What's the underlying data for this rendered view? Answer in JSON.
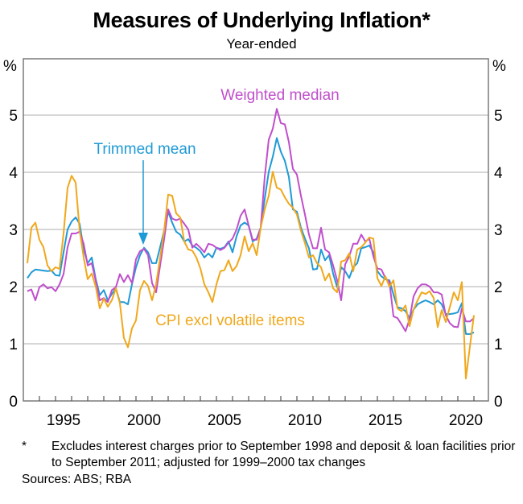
{
  "chart_data": {
    "type": "line",
    "title": "Measures of Underlying Inflation*",
    "subtitle": "Year-ended",
    "ylabel_left": "%",
    "ylabel_right": "%",
    "xlabel": "",
    "xlim": [
      1993.0,
      2021.9
    ],
    "ylim": [
      0,
      5.5
    ],
    "yticks": [
      0,
      1,
      2,
      3,
      4,
      5
    ],
    "xtick_labels": [
      "1995",
      "2000",
      "2005",
      "2010",
      "2015",
      "2020"
    ],
    "xtick_label_years": [
      1995,
      2000,
      2005,
      2010,
      2015,
      2020
    ],
    "minor_tick_years": [
      1994,
      1995,
      1996,
      1997,
      1998,
      1999,
      2000,
      2001,
      2002,
      2003,
      2004,
      2005,
      2006,
      2007,
      2008,
      2009,
      2010,
      2011,
      2012,
      2013,
      2014,
      2015,
      2016,
      2017,
      2018,
      2019,
      2020,
      2021
    ],
    "grid": true,
    "frequency": "quarterly",
    "x_start": 1993.25,
    "x_step": 0.25,
    "series": [
      {
        "name": "Trimmed mean",
        "color": "#1f9ad6",
        "values": [
          2.15,
          2.25,
          2.3,
          2.29,
          2.28,
          2.27,
          2.28,
          2.2,
          2.19,
          2.6,
          3.0,
          3.14,
          3.21,
          3.1,
          2.65,
          2.41,
          2.51,
          2.13,
          1.85,
          1.94,
          1.76,
          1.87,
          1.97,
          1.73,
          1.73,
          1.69,
          2.04,
          2.34,
          2.55,
          2.68,
          2.6,
          2.41,
          2.41,
          2.69,
          2.98,
          3.31,
          3.12,
          2.96,
          2.91,
          2.79,
          2.83,
          2.72,
          2.68,
          2.62,
          2.51,
          2.58,
          2.51,
          2.68,
          2.66,
          2.69,
          2.79,
          2.6,
          2.88,
          3.07,
          3.12,
          3.07,
          2.79,
          2.84,
          3.03,
          3.54,
          4.01,
          4.27,
          4.6,
          4.36,
          4.2,
          3.92,
          3.35,
          3.31,
          3.03,
          2.84,
          2.67,
          2.3,
          2.31,
          2.65,
          2.46,
          2.55,
          2.23,
          1.99,
          2.34,
          2.27,
          2.15,
          2.34,
          2.41,
          2.67,
          2.69,
          2.72,
          2.6,
          2.27,
          2.18,
          2.13,
          2.11,
          1.86,
          1.64,
          1.62,
          1.57,
          1.45,
          1.6,
          1.69,
          1.73,
          1.76,
          1.73,
          1.69,
          1.76,
          1.69,
          1.52,
          1.52,
          1.53,
          1.55,
          1.71,
          1.17,
          1.17,
          1.2
        ]
      },
      {
        "name": "Weighted median",
        "color": "#c04fcc",
        "values": [
          1.92,
          1.95,
          1.76,
          1.99,
          2.04,
          1.97,
          1.99,
          1.92,
          2.04,
          2.22,
          2.69,
          2.93,
          2.93,
          2.96,
          2.75,
          2.37,
          2.41,
          2.1,
          1.76,
          1.8,
          1.73,
          1.94,
          1.99,
          2.22,
          2.08,
          2.2,
          2.06,
          2.48,
          2.62,
          2.66,
          2.55,
          2.06,
          1.9,
          2.37,
          2.83,
          3.35,
          3.19,
          3.16,
          3.19,
          3.1,
          3.0,
          2.68,
          2.75,
          2.68,
          2.6,
          2.75,
          2.73,
          2.68,
          2.64,
          2.68,
          2.77,
          2.84,
          3.0,
          3.24,
          3.35,
          3.07,
          2.82,
          2.82,
          3.03,
          3.92,
          4.57,
          4.76,
          5.11,
          4.86,
          4.84,
          4.53,
          4.06,
          3.96,
          3.59,
          3.26,
          2.91,
          2.67,
          2.67,
          3.03,
          2.65,
          2.6,
          2.37,
          2.11,
          1.76,
          2.39,
          2.53,
          2.75,
          2.75,
          2.91,
          2.79,
          2.84,
          2.53,
          2.32,
          2.3,
          2.15,
          2.08,
          1.48,
          1.45,
          1.34,
          1.22,
          1.43,
          1.83,
          1.97,
          2.04,
          2.04,
          2.0,
          1.9,
          1.9,
          1.86,
          1.5,
          1.36,
          1.3,
          1.29,
          1.62,
          1.39,
          1.39,
          1.45
        ]
      },
      {
        "name": "CPI excl volatile items",
        "color": "#f0a81c",
        "values": [
          2.41,
          3.03,
          3.12,
          2.82,
          2.69,
          2.37,
          2.27,
          2.34,
          2.31,
          2.93,
          3.73,
          3.94,
          3.82,
          2.98,
          2.51,
          2.13,
          2.23,
          2.0,
          1.62,
          1.79,
          1.65,
          1.76,
          1.97,
          1.71,
          1.1,
          0.94,
          1.27,
          1.41,
          1.94,
          2.1,
          2.01,
          1.76,
          2.04,
          2.51,
          2.98,
          3.61,
          3.59,
          3.28,
          3.21,
          2.79,
          2.65,
          2.63,
          2.51,
          2.32,
          2.04,
          1.9,
          1.73,
          2.04,
          2.27,
          2.29,
          2.46,
          2.27,
          2.36,
          2.55,
          2.88,
          2.62,
          2.76,
          2.55,
          3.03,
          3.35,
          3.59,
          4.01,
          3.73,
          3.7,
          3.56,
          3.45,
          3.38,
          3.26,
          2.98,
          2.76,
          2.51,
          2.55,
          2.41,
          2.34,
          2.11,
          2.23,
          1.97,
          1.9,
          2.44,
          2.46,
          2.58,
          2.27,
          2.65,
          2.69,
          2.77,
          2.86,
          2.84,
          2.15,
          2.01,
          2.18,
          2.0,
          2.11,
          1.62,
          1.57,
          1.67,
          1.31,
          1.6,
          1.76,
          1.9,
          1.87,
          1.92,
          1.8,
          1.29,
          1.59,
          1.38,
          1.64,
          1.9,
          1.76,
          2.08,
          0.39,
          0.95,
          1.5
        ]
      }
    ],
    "annotations": [
      {
        "text": "Weighted median",
        "series": "Weighted median"
      },
      {
        "text": "Trimmed mean",
        "series": "Trimmed mean",
        "arrow_to_year": 2000.5
      },
      {
        "text": "CPI excl volatile items",
        "series": "CPI excl volatile items"
      }
    ]
  },
  "footnote": {
    "marker": "*",
    "text": "Excludes interest charges prior to September 1998 and deposit & loan facilities prior to September 2011; adjusted for 1999–2000 tax changes"
  },
  "sources": "Sources: ABS; RBA"
}
